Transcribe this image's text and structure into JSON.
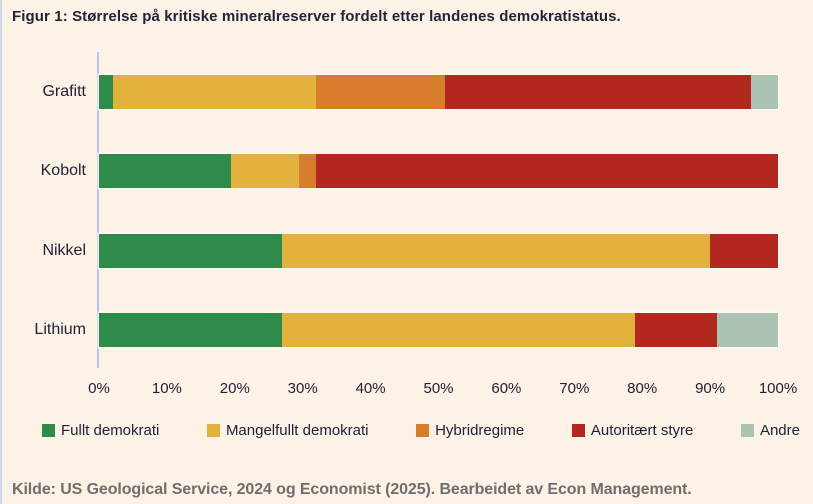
{
  "page": {
    "title": "Figur 1: Størrelse på kritiske mineralreserver fordelt etter landenes demokratistatus.",
    "source": "Kilde: US Geological Service, 2024 og Economist (2025). Bearbeidet av Econ Management."
  },
  "colors": {
    "background": "#fdf2e6",
    "axis_line": "#b9c6e9",
    "text_dark": "#21213a",
    "source_text": "#6e6e6e",
    "full_democracy_green": "#2e8b4c",
    "flawed_democracy_yellow": "#e3b23d",
    "hybrid_regime_orange": "#d87d2c",
    "authoritarian_red": "#b3281e",
    "other_sage": "#aac3b3"
  },
  "chart_data": {
    "type": "bar",
    "orientation": "horizontal",
    "stacked": true,
    "grid": false,
    "legend_position": "bottom",
    "title": "Figur 1: Størrelse på kritiske mineralreserver fordelt etter landenes demokratistatus.",
    "xlabel": "",
    "ylabel": "",
    "xlim": [
      0,
      100
    ],
    "x_ticks": [
      "0%",
      "10%",
      "20%",
      "30%",
      "40%",
      "50%",
      "60%",
      "70%",
      "80%",
      "90%",
      "100%"
    ],
    "categories": [
      "Grafitt",
      "Kobolt",
      "Nikkel",
      "Lithium"
    ],
    "series": [
      {
        "name": "Fullt demokrati",
        "color": "#2e8b4c",
        "values": [
          2,
          19.5,
          27,
          27
        ]
      },
      {
        "name": "Mangelfullt demokrati",
        "color": "#e3b23d",
        "values": [
          30,
          10,
          63,
          52
        ]
      },
      {
        "name": "Hybridregime",
        "color": "#d87d2c",
        "values": [
          19,
          2.5,
          0,
          0
        ]
      },
      {
        "name": "Autoritært styre",
        "color": "#b3281e",
        "values": [
          45,
          68,
          10,
          12
        ]
      },
      {
        "name": "Andre",
        "color": "#aac3b3",
        "values": [
          4,
          0,
          0,
          9
        ]
      }
    ]
  }
}
